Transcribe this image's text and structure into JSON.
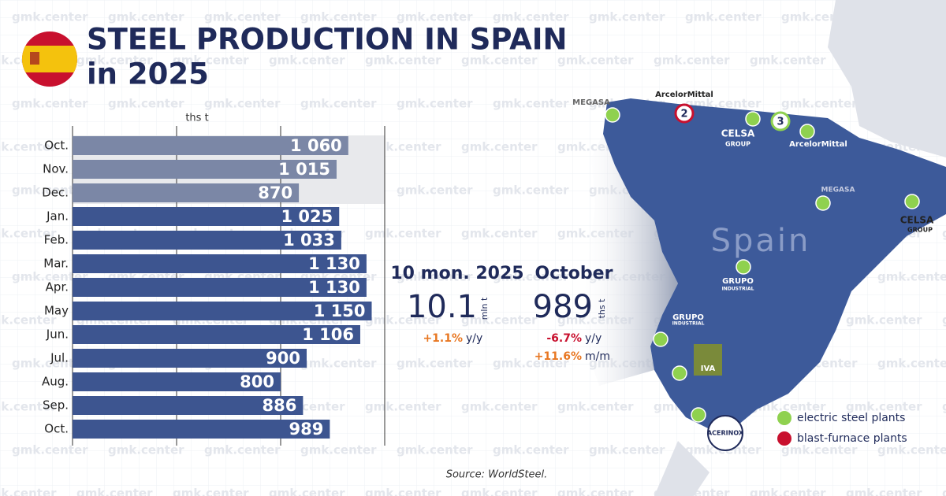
{
  "header": {
    "title_line1": "STEEL PRODUCTION IN SPAIN",
    "title_line2": "in 2025"
  },
  "watermark": "gmk.center",
  "chart_data": {
    "type": "barh",
    "axis_label": "ths t",
    "categories": [
      "Oct.",
      "Nov.",
      "Dec.",
      "Jan.",
      "Feb.",
      "Mar.",
      "Apr.",
      "May",
      "Jun.",
      "Jul.",
      "Aug.",
      "Sep.",
      "Oct."
    ],
    "values": [
      1060,
      1015,
      870,
      1025,
      1033,
      1130,
      1130,
      1150,
      1106,
      900,
      800,
      886,
      989
    ],
    "value_labels": [
      "1 060",
      "1 015",
      "870",
      "1 025",
      "1 033",
      "1 130",
      "1 130",
      "1 150",
      "1 106",
      "900",
      "800",
      "886",
      "989"
    ],
    "colors": [
      "#7b87a6",
      "#7b87a6",
      "#7b87a6",
      "#3d5590",
      "#3d5590",
      "#3d5590",
      "#3d5590",
      "#3d5590",
      "#3d5590",
      "#3d5590",
      "#3d5590",
      "#3d5590",
      "#3d5590"
    ],
    "xlim": [
      0,
      1200
    ],
    "xticks": [
      0,
      400,
      800,
      1200
    ],
    "grid": true
  },
  "stats": {
    "period1": "10 mon. 2025",
    "value1": "10.1",
    "unit1": "mln t",
    "change1": "+1.1%",
    "change1_label": "y/y",
    "period2": "October",
    "value2": "989",
    "unit2": "ths t",
    "change2": "-6.7%",
    "change2_label": "y/y",
    "change3": "+11.6%",
    "change3_label": "m/m"
  },
  "map": {
    "country": "Spain",
    "companies": [
      "MEGASA",
      "ArcelorMittal",
      "CELSA",
      "GROUP",
      "ArcelorMittal",
      "MEGASA",
      "CELSA",
      "GROUP",
      "GRUPO",
      "INDUSTRIAL",
      "GRUPO",
      "INDUSTRIAL",
      "IVA",
      "ACERINOX"
    ],
    "markers": [
      "2",
      "3"
    ],
    "legend": [
      "electric steel plants",
      "blast-furnace plants"
    ]
  },
  "source": "Source: WorldSteel."
}
